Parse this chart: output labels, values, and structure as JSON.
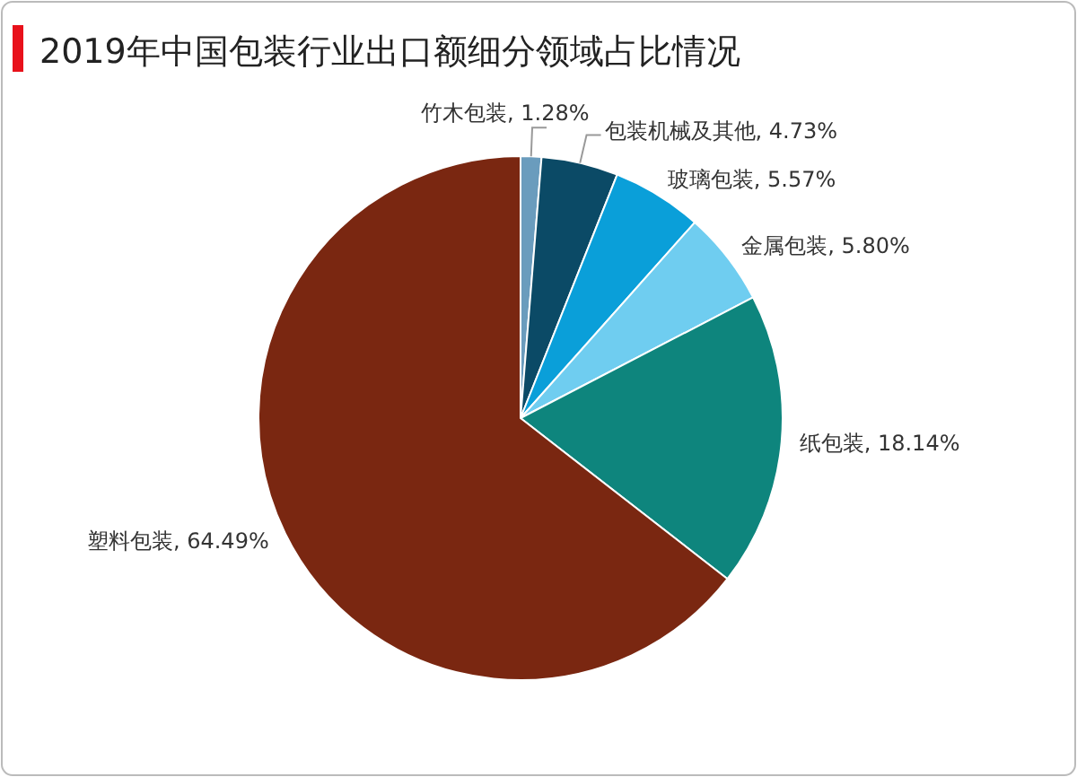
{
  "chart_data": {
    "type": "pie",
    "title": "2019年中国包装行业出口额细分领域占比情况",
    "categories": [
      "竹木包装",
      "包装机械及其他",
      "玻璃包装",
      "金属包装",
      "纸包装",
      "塑料包装"
    ],
    "values": [
      1.28,
      4.73,
      5.57,
      5.8,
      18.14,
      64.49
    ],
    "value_labels": [
      "1.28%",
      "4.73%",
      "5.57%",
      "5.80%",
      "18.14%",
      "64.49%"
    ],
    "colors": [
      "#6a9cbd",
      "#0b4a66",
      "#0a9fd9",
      "#6fcdf0",
      "#0e857d",
      "#7a2711"
    ],
    "legend": false
  }
}
